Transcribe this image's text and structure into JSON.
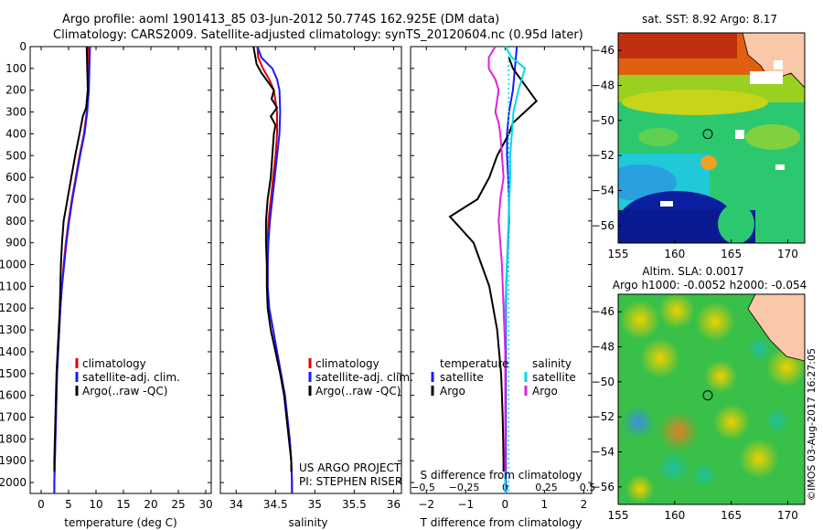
{
  "header": {
    "line1": "Argo profile: aoml 1901413_85 03-Jun-2012 50.774S 162.925E (DM data)",
    "line2": "Climatology: CARS2009. Satellite-adjusted climatology: synTS_20120604.nc (0.95d later)"
  },
  "colors": {
    "climatology": "#e00000",
    "satellite": "#1a1aff",
    "argo": "#000000",
    "cyan": "#00d8e8",
    "magenta": "#e020e0"
  },
  "credit": "©IMOS 03-Aug-2017 16:27:05",
  "chart_data": [
    {
      "type": "line",
      "name": "temperature",
      "xlabel": "temperature (deg C)",
      "ylabel": "",
      "xlim": [
        -2,
        31
      ],
      "ylim": [
        2050,
        0
      ],
      "xticks": [
        0,
        5,
        10,
        15,
        20,
        25,
        30
      ],
      "yticks": [
        0,
        100,
        200,
        300,
        400,
        500,
        600,
        700,
        800,
        900,
        1000,
        1100,
        1200,
        1300,
        1400,
        1500,
        1600,
        1700,
        1800,
        1900,
        2000
      ],
      "legend": [
        "climatology",
        "satellite-adj. clim.",
        "Argo(..raw -QC)"
      ],
      "series": [
        {
          "name": "climatology",
          "color": "#e00000",
          "depth": [
            0,
            100,
            200,
            300,
            400,
            500,
            600,
            700,
            800,
            900,
            1000,
            1100,
            1200,
            1300,
            1400,
            1500,
            1600,
            1700,
            1800,
            1900,
            2000,
            2050
          ],
          "values": [
            8.6,
            8.6,
            8.5,
            8.3,
            7.8,
            7.0,
            6.3,
            5.6,
            5.0,
            4.5,
            4.1,
            3.8,
            3.5,
            3.3,
            3.1,
            2.9,
            2.8,
            2.7,
            2.6,
            2.5,
            2.4,
            2.4
          ]
        },
        {
          "name": "satellite-adj. clim.",
          "color": "#1a1aff",
          "depth": [
            0,
            100,
            200,
            300,
            400,
            500,
            600,
            700,
            800,
            900,
            1000,
            1100,
            1200,
            1300,
            1400,
            1500,
            1600,
            1700,
            1800,
            1900,
            2000,
            2050
          ],
          "values": [
            8.9,
            8.8,
            8.7,
            8.4,
            7.9,
            7.1,
            6.4,
            5.7,
            5.1,
            4.6,
            4.2,
            3.8,
            3.5,
            3.3,
            3.1,
            2.9,
            2.8,
            2.7,
            2.6,
            2.5,
            2.4,
            2.4
          ]
        },
        {
          "name": "Argo(..raw -QC)",
          "color": "#000000",
          "depth": [
            0,
            100,
            200,
            280,
            320,
            400,
            500,
            600,
            700,
            800,
            900,
            1000,
            1100,
            1200,
            1300,
            1400,
            1500,
            1600,
            1700,
            1800,
            1900,
            1950
          ],
          "values": [
            8.3,
            8.4,
            8.5,
            8.2,
            7.6,
            7.0,
            6.2,
            5.5,
            4.8,
            4.1,
            3.8,
            3.6,
            3.5,
            3.4,
            3.2,
            3.0,
            2.8,
            2.7,
            2.6,
            2.5,
            2.4,
            2.4
          ]
        }
      ]
    },
    {
      "type": "line",
      "name": "salinity",
      "xlabel": "salinity",
      "ylabel": "",
      "xlim": [
        33.8,
        36.1
      ],
      "ylim": [
        2050,
        0
      ],
      "xticks": [
        34,
        34.5,
        35,
        35.5,
        36
      ],
      "legend": [
        "climatology",
        "satellite-adj. clim.",
        "Argo(..raw -QC)"
      ],
      "annotation": [
        "US ARGO PROJECT",
        "PI: STEPHEN RISER"
      ],
      "series": [
        {
          "name": "climatology",
          "color": "#e00000",
          "depth": [
            0,
            50,
            100,
            150,
            200,
            300,
            400,
            500,
            600,
            700,
            800,
            900,
            1000,
            1100,
            1200,
            1300,
            1400,
            1500,
            1600,
            1700,
            1800,
            1900,
            2000,
            2050
          ],
          "values": [
            34.27,
            34.28,
            34.34,
            34.42,
            34.48,
            34.52,
            34.52,
            34.5,
            34.47,
            34.44,
            34.41,
            34.4,
            34.4,
            34.4,
            34.42,
            34.47,
            34.52,
            34.57,
            34.62,
            34.65,
            34.68,
            34.7,
            34.71,
            34.71
          ]
        },
        {
          "name": "satellite-adj. clim.",
          "color": "#1a1aff",
          "depth": [
            0,
            50,
            100,
            150,
            200,
            300,
            400,
            500,
            600,
            700,
            800,
            900,
            1000,
            1100,
            1200,
            1300,
            1400,
            1500,
            1600,
            1700,
            1800,
            1900,
            2000,
            2050
          ],
          "values": [
            34.27,
            34.32,
            34.46,
            34.52,
            34.55,
            34.56,
            34.55,
            34.52,
            34.49,
            34.46,
            34.43,
            34.41,
            34.4,
            34.4,
            34.42,
            34.47,
            34.52,
            34.57,
            34.62,
            34.65,
            34.68,
            34.7,
            34.71,
            34.71
          ]
        },
        {
          "name": "Argo(..raw -QC)",
          "color": "#000000",
          "depth": [
            0,
            40,
            80,
            120,
            160,
            200,
            240,
            280,
            320,
            360,
            400,
            500,
            600,
            700,
            800,
            900,
            1000,
            1100,
            1200,
            1300,
            1400,
            1500,
            1600,
            1700,
            1800,
            1900,
            1950
          ],
          "values": [
            34.22,
            34.24,
            34.26,
            34.32,
            34.4,
            34.48,
            34.45,
            34.52,
            34.44,
            34.5,
            34.48,
            34.46,
            34.44,
            34.4,
            34.38,
            34.38,
            34.39,
            34.39,
            34.4,
            34.44,
            34.5,
            34.56,
            34.61,
            34.64,
            34.67,
            34.7,
            34.7
          ]
        }
      ]
    },
    {
      "type": "line",
      "name": "difference",
      "xlabel": "T difference from climatology",
      "xlabel2": "S difference from climatology",
      "ylabel": "",
      "xlim": [
        -2.4,
        2.2
      ],
      "ylim": [
        2050,
        0
      ],
      "xticks": [
        -2,
        -1,
        0,
        1,
        2
      ],
      "xticks2": [
        -0.5,
        -0.25,
        0,
        0.25,
        0.5
      ],
      "legend_temperature": {
        "title": "temperature",
        "items": [
          "satellite",
          "Argo"
        ]
      },
      "legend_salinity": {
        "title": "salinity",
        "items": [
          "satellite",
          "Argo"
        ]
      },
      "series": [
        {
          "name": "temperature satellite",
          "color": "#1a1aff",
          "depth": [
            0,
            100,
            200,
            300,
            400,
            500,
            600,
            700,
            800,
            900,
            1000,
            1100,
            1200,
            1400,
            1600,
            1800,
            2000,
            2050
          ],
          "values": [
            0.3,
            0.25,
            0.2,
            0.1,
            0.05,
            0.05,
            0.08,
            0.1,
            0.1,
            0.08,
            0.05,
            0.03,
            0.02,
            0.02,
            0.02,
            0.02,
            0.02,
            0.02
          ]
        },
        {
          "name": "temperature Argo",
          "color": "#000000",
          "depth": [
            50,
            100,
            200,
            250,
            300,
            350,
            400,
            500,
            600,
            700,
            780,
            820,
            900,
            1000,
            1100,
            1200,
            1300,
            1400,
            1500,
            1600,
            1700,
            1800,
            1900,
            1950
          ],
          "values": [
            0.1,
            0.2,
            0.6,
            0.8,
            0.5,
            0.2,
            0.1,
            -0.2,
            -0.4,
            -0.7,
            -1.4,
            -1.2,
            -0.8,
            -0.6,
            -0.4,
            -0.3,
            -0.2,
            -0.15,
            -0.1,
            -0.08,
            -0.06,
            -0.05,
            -0.04,
            -0.04
          ]
        },
        {
          "name": "salinity satellite",
          "color": "#00d8e8",
          "depth": [
            0,
            50,
            100,
            150,
            200,
            300,
            400,
            500,
            600,
            800,
            1000,
            1200,
            1400,
            1600,
            1800,
            2000,
            2050
          ],
          "values": [
            0.0,
            0.04,
            0.12,
            0.1,
            0.08,
            0.05,
            0.04,
            0.03,
            0.03,
            0.02,
            0.01,
            0.0,
            0.0,
            0.0,
            0.0,
            0.0,
            0.0
          ]
        },
        {
          "name": "salinity Argo",
          "color": "#e020e0",
          "depth": [
            0,
            50,
            100,
            150,
            200,
            250,
            300,
            350,
            400,
            500,
            600,
            700,
            800,
            900,
            1000,
            1200,
            1400,
            1600,
            1800,
            1900,
            1950
          ],
          "values": [
            -0.06,
            -0.1,
            -0.1,
            -0.06,
            -0.04,
            -0.05,
            -0.06,
            -0.04,
            -0.03,
            -0.02,
            -0.01,
            -0.03,
            -0.04,
            -0.03,
            -0.02,
            -0.01,
            0.0,
            0.0,
            0.0,
            0.0,
            0.0
          ]
        }
      ]
    },
    {
      "type": "heatmap",
      "name": "sst-map",
      "title": "sat. SST: 8.92 Argo: 8.17",
      "xlim": [
        155,
        171.5
      ],
      "ylim": [
        -57,
        -45
      ],
      "xticks": [
        155,
        160,
        165,
        170
      ],
      "yticks": [
        -46,
        -48,
        -50,
        -52,
        -54,
        -56
      ],
      "marker": [
        162.925,
        -50.774
      ]
    },
    {
      "type": "heatmap",
      "name": "sla-map",
      "title": "Altim. SLA: 0.0017",
      "subtitle": "Argo h1000: -0.0052 h2000: -0.054",
      "xlim": [
        155,
        171.5
      ],
      "ylim": [
        -57,
        -45
      ],
      "xticks": [
        155,
        160,
        165,
        170
      ],
      "yticks": [
        -46,
        -48,
        -50,
        -52,
        -54,
        -56
      ],
      "marker": [
        162.925,
        -50.774
      ]
    }
  ]
}
